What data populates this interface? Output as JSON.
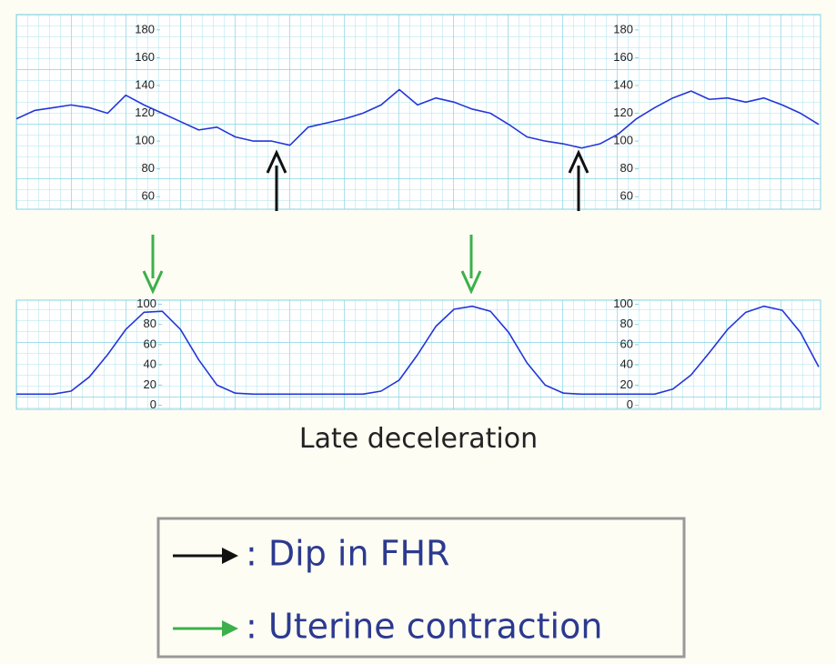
{
  "chart_data": [
    {
      "type": "line",
      "x": [
        0,
        1,
        2,
        3,
        4,
        5,
        6,
        7,
        8,
        9,
        10,
        11,
        12,
        13,
        14,
        15,
        16,
        17,
        18,
        19,
        20,
        21,
        22,
        23,
        24,
        25,
        26,
        27,
        28,
        29,
        30,
        31,
        32,
        33,
        34,
        35,
        36,
        37,
        38,
        39,
        40,
        41,
        42,
        43,
        44
      ],
      "xlim": [
        0,
        44
      ],
      "series": [
        {
          "color": "#2436d8",
          "values": [
            116,
            122,
            124,
            126,
            124,
            120,
            133,
            126,
            120,
            114,
            108,
            110,
            103,
            100,
            100,
            97,
            110,
            113,
            116,
            120,
            126,
            137,
            126,
            131,
            128,
            123,
            120,
            112,
            103,
            100,
            98,
            95,
            98,
            105,
            116,
            124,
            131,
            136,
            130,
            131,
            128,
            131,
            126,
            120,
            112
          ]
        }
      ],
      "ylim": [
        51,
        191
      ],
      "yticks": [
        60,
        80,
        100,
        120,
        140,
        160,
        180
      ],
      "grid": true
    },
    {
      "type": "line",
      "x": [
        0,
        1,
        2,
        3,
        4,
        5,
        6,
        7,
        8,
        9,
        10,
        11,
        12,
        13,
        14,
        15,
        16,
        17,
        18,
        19,
        20,
        21,
        22,
        23,
        24,
        25,
        26,
        27,
        28,
        29,
        30,
        31,
        32,
        33,
        34,
        35,
        36,
        37,
        38,
        39,
        40,
        41,
        42,
        43,
        44
      ],
      "xlim": [
        0,
        44
      ],
      "series": [
        {
          "color": "#2436d8",
          "values": [
            11,
            11,
            11,
            14,
            28,
            50,
            75,
            92,
            93,
            75,
            45,
            20,
            12,
            11,
            11,
            11,
            11,
            11,
            11,
            11,
            14,
            25,
            50,
            78,
            95,
            98,
            93,
            72,
            42,
            20,
            12,
            11,
            11,
            11,
            11,
            11,
            16,
            30,
            52,
            75,
            92,
            98,
            94,
            72,
            38
          ]
        }
      ],
      "ylim": [
        -4,
        104
      ],
      "yticks": [
        0,
        20,
        40,
        60,
        80,
        100
      ],
      "grid": true
    }
  ],
  "caption": "Late deceleration",
  "legend": [
    {
      "color": "#111111",
      "label": ": Dip in FHR"
    },
    {
      "color": "#3cb04a",
      "label": ": Uterine contraction"
    }
  ]
}
